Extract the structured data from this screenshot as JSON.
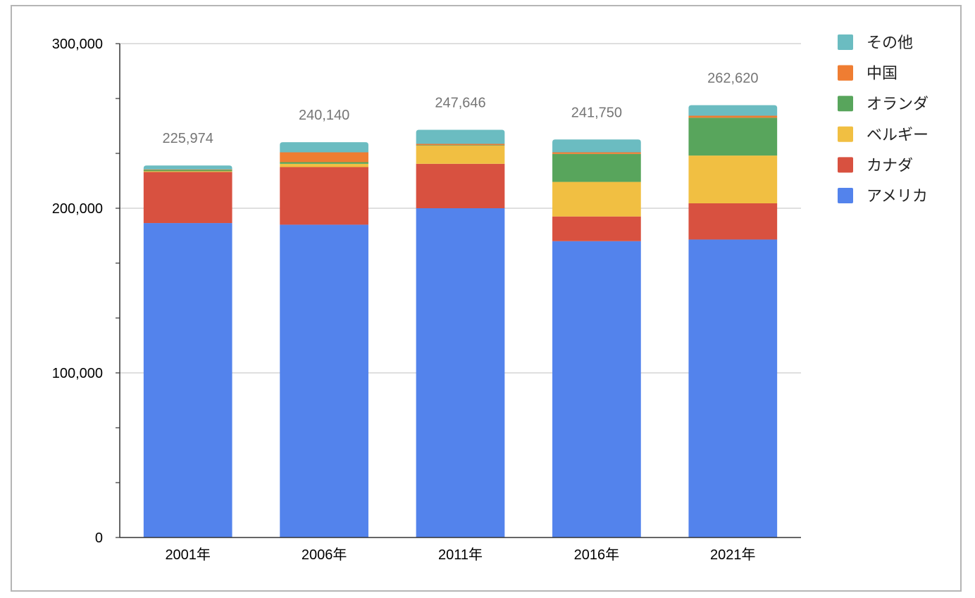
{
  "chart_data": {
    "type": "stacked-bar",
    "title": "",
    "xlabel": "",
    "ylabel": "",
    "ylim": [
      0,
      300000
    ],
    "y_ticks": [
      0,
      100000,
      200000,
      300000
    ],
    "y_tick_labels": [
      "0",
      "100,000",
      "200,000",
      "300,000"
    ],
    "minor_tick_step": 33333,
    "grid": true,
    "legend_position": "right",
    "categories": [
      "2001年",
      "2006年",
      "2011年",
      "2016年",
      "2021年"
    ],
    "totals": [
      225974,
      240140,
      247646,
      241750,
      262620
    ],
    "total_labels": [
      "225,974",
      "240,140",
      "247,646",
      "241,750",
      "262,620"
    ],
    "series": [
      {
        "name": "アメリカ",
        "color": "#5383EC",
        "values": [
          191000,
          190000,
          200000,
          180000,
          181000
        ]
      },
      {
        "name": "カナダ",
        "color": "#D85140",
        "values": [
          31000,
          35000,
          27000,
          15000,
          22000
        ]
      },
      {
        "name": "ベルギー",
        "color": "#F1BF42",
        "values": [
          500,
          2000,
          11000,
          21000,
          29000
        ]
      },
      {
        "name": "オランダ",
        "color": "#58A55C",
        "values": [
          800,
          1000,
          300,
          17000,
          23000
        ]
      },
      {
        "name": "中国",
        "color": "#EF7D32",
        "values": [
          300,
          6000,
          800,
          1000,
          1200
        ]
      },
      {
        "name": "その他",
        "color": "#6BBCC1",
        "values": [
          2374,
          6140,
          8546,
          7750,
          6420
        ]
      }
    ],
    "legend_order": [
      "その他",
      "中国",
      "オランダ",
      "ベルギー",
      "カナダ",
      "アメリカ"
    ]
  }
}
